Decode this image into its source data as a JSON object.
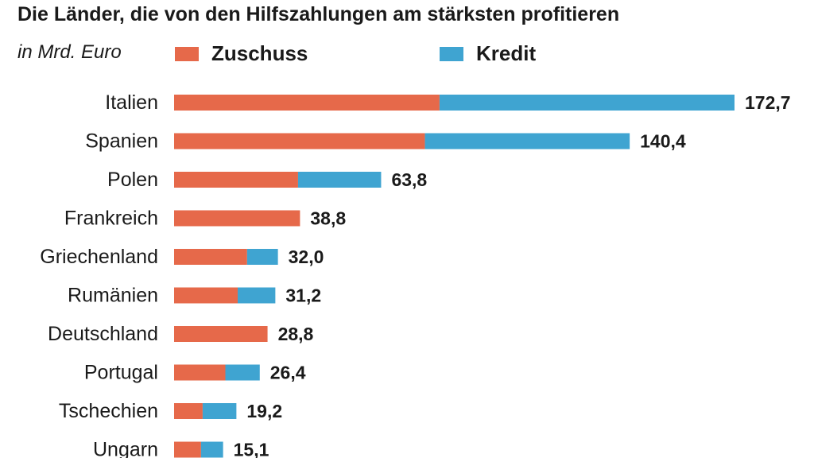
{
  "colors": {
    "zuschuss": "#e6694a",
    "kredit": "#3fa4d1"
  },
  "chart_data": {
    "type": "bar",
    "orientation": "horizontal",
    "stacked": true,
    "title": "Die Länder, die von den Hilfszahlungen am stärksten profitieren",
    "subtitle": "in Mrd. Euro",
    "legend_position": "top",
    "categories": [
      "Italien",
      "Spanien",
      "Polen",
      "Frankreich",
      "Griechenland",
      "Rumänien",
      "Deutschland",
      "Portugal",
      "Tschechien",
      "Ungarn"
    ],
    "series": [
      {
        "name": "Zuschuss",
        "values": [
          81.8,
          77.3,
          38.2,
          38.8,
          22.5,
          19.6,
          28.8,
          15.8,
          8.8,
          8.3
        ]
      },
      {
        "name": "Kredit",
        "values": [
          90.9,
          63.1,
          25.6,
          0.0,
          9.5,
          11.6,
          0.0,
          10.6,
          10.4,
          6.8
        ]
      }
    ],
    "totals": [
      172.7,
      140.4,
      63.8,
      38.8,
      32.0,
      31.2,
      28.8,
      26.4,
      19.2,
      15.1
    ],
    "total_labels": [
      "172,7",
      "140,4",
      "63,8",
      "38,8",
      "32,0",
      "31,2",
      "28,8",
      "26,4",
      "19,2",
      "15,1"
    ],
    "xlim": [
      0,
      172.7
    ],
    "grid": false
  }
}
